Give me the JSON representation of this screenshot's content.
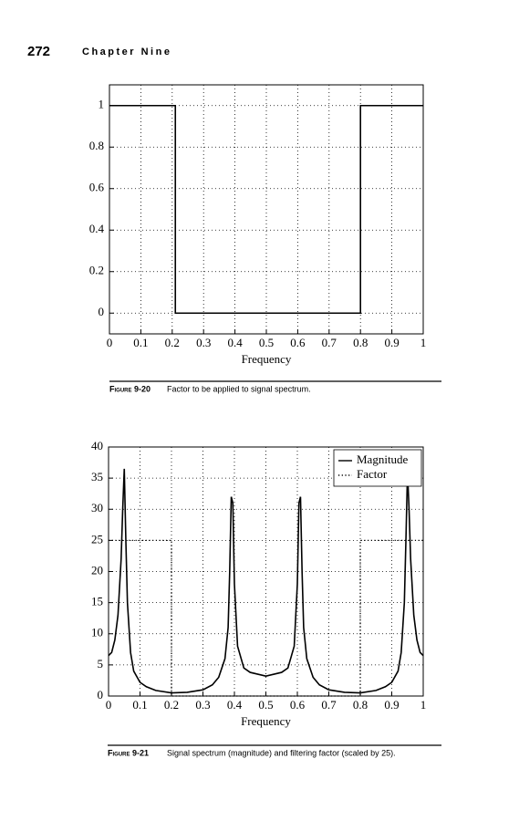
{
  "header": {
    "page_number": "272",
    "chapter": "Chapter Nine"
  },
  "captions": [
    {
      "label": "Figure 9-20",
      "text": "Factor to be applied to signal spectrum."
    },
    {
      "label": "Figure 9-21",
      "text": "Signal spectrum (magnitude) and filtering factor (scaled by 25)."
    }
  ],
  "chart_data": [
    {
      "type": "line",
      "xlabel": "Frequency",
      "grid": true,
      "xlim": [
        0,
        1
      ],
      "ylim": [
        -0.1,
        1.1
      ],
      "xticks": [
        0,
        0.1,
        0.2,
        0.3,
        0.4,
        0.5,
        0.6,
        0.7,
        0.8,
        0.9,
        1
      ],
      "yticks": [
        0,
        0.2,
        0.4,
        0.6,
        0.8,
        1
      ],
      "series": [
        {
          "color": "#000000",
          "style": "solid",
          "x": [
            0,
            0.21,
            0.21,
            0.8,
            0.8,
            1
          ],
          "values": [
            1,
            1,
            0,
            0,
            1,
            1
          ]
        }
      ]
    },
    {
      "type": "line",
      "xlabel": "Frequency",
      "grid": true,
      "legend": "upper right",
      "xlim": [
        0,
        1
      ],
      "ylim": [
        0,
        40
      ],
      "xticks": [
        0,
        0.1,
        0.2,
        0.3,
        0.4,
        0.5,
        0.6,
        0.7,
        0.8,
        0.9,
        1
      ],
      "yticks": [
        0,
        5,
        10,
        15,
        20,
        25,
        30,
        35,
        40
      ],
      "series": [
        {
          "name": "Magnitude",
          "color": "#000000",
          "style": "solid",
          "x": [
            0,
            0.01,
            0.02,
            0.03,
            0.04,
            0.045,
            0.05,
            0.055,
            0.06,
            0.07,
            0.08,
            0.1,
            0.12,
            0.15,
            0.2,
            0.25,
            0.3,
            0.33,
            0.35,
            0.37,
            0.38,
            0.385,
            0.39,
            0.395,
            0.4,
            0.41,
            0.43,
            0.45,
            0.5,
            0.55,
            0.57,
            0.59,
            0.6,
            0.605,
            0.61,
            0.615,
            0.62,
            0.63,
            0.65,
            0.67,
            0.7,
            0.75,
            0.8,
            0.85,
            0.88,
            0.9,
            0.92,
            0.93,
            0.94,
            0.945,
            0.95,
            0.955,
            0.96,
            0.97,
            0.98,
            0.99,
            1
          ],
          "values": [
            6.5,
            7,
            9,
            13,
            22,
            30,
            36.5,
            25,
            15,
            7,
            4,
            2.2,
            1.5,
            0.9,
            0.5,
            0.6,
            1,
            1.8,
            3,
            6,
            11,
            20,
            32,
            31,
            18,
            8,
            4.5,
            3.8,
            3.2,
            3.8,
            4.5,
            8,
            18,
            31,
            32,
            20,
            11,
            6,
            3,
            1.8,
            1,
            0.6,
            0.5,
            0.9,
            1.5,
            2.2,
            4,
            7,
            15,
            25,
            36,
            30,
            22,
            13,
            9,
            7,
            6.5
          ]
        },
        {
          "name": "Factor",
          "color": "#000000",
          "style": "dotted",
          "x": [
            0,
            0.2,
            0.2,
            0.8,
            0.8,
            1
          ],
          "values": [
            25,
            25,
            0,
            0,
            25,
            25
          ]
        }
      ]
    }
  ]
}
